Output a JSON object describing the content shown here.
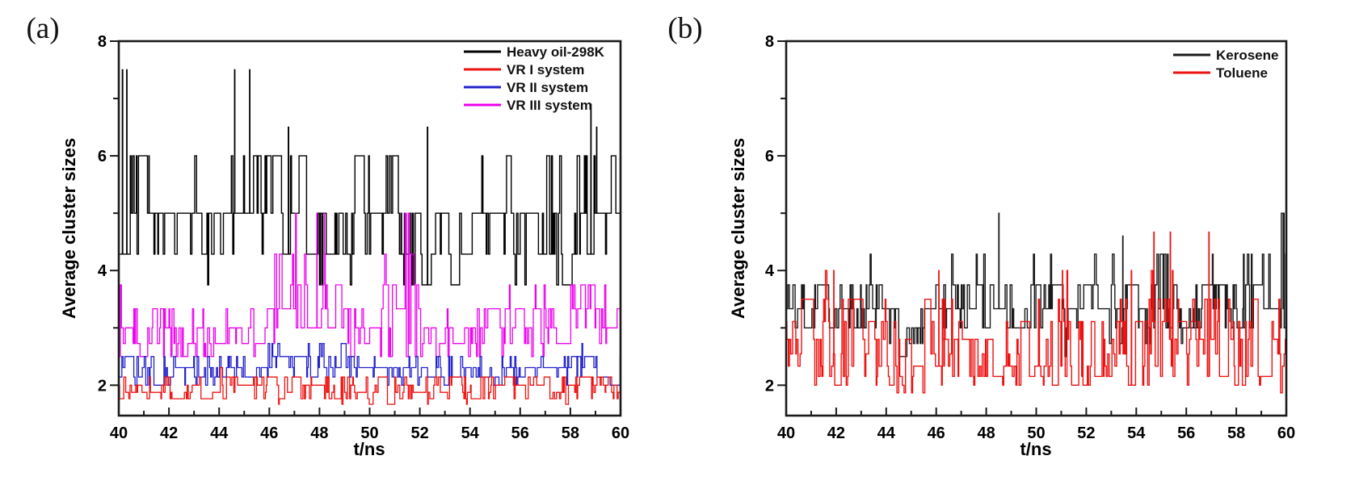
{
  "figure": {
    "background": "#ffffff",
    "frame_color": "#1a1a1a"
  },
  "chart_data": [
    {
      "type": "line",
      "panel_label": "(a)",
      "xlabel": "t/ns",
      "ylabel": "Average cluster sizes",
      "xlim": [
        40,
        60
      ],
      "ylim": [
        1.47,
        8
      ],
      "x_major_ticks": [
        40,
        42,
        44,
        46,
        48,
        50,
        52,
        54,
        56,
        58,
        60
      ],
      "x_minor_ticks": [
        41,
        43,
        45,
        47,
        49,
        51,
        53,
        55,
        57,
        59
      ],
      "y_major_ticks": [
        2,
        4,
        6,
        8
      ],
      "y_minor_ticks": [
        3,
        5,
        7
      ],
      "grid": false,
      "legend_position": "top-right",
      "series": [
        {
          "name": "Heavy oil-298K",
          "color": "#000000",
          "stroke_width": 1.4,
          "z": 0,
          "seed": 7,
          "samples": 1400,
          "quant_base": 30,
          "x_start": 40,
          "x_step": 0.5,
          "envelope_lo": [
            4.3,
            4.3,
            4.3,
            4.3,
            4.3,
            4.3,
            4.3,
            3.75,
            3.75,
            4.3,
            4.3,
            4.3,
            4.3,
            4.3,
            4.3,
            4.3,
            3.75,
            3.75,
            3.75,
            3.75,
            4.3,
            4.3,
            4.3,
            3.75,
            3.75,
            3.75,
            3.75,
            3.75,
            3.75,
            3.75,
            3.75,
            3.75,
            3.75,
            3.75,
            3.75,
            3.75,
            3.75,
            4.3,
            4.3,
            4.3,
            4.3
          ],
          "envelope_hi": [
            6.5,
            6,
            6,
            5,
            5,
            5,
            6,
            5,
            5,
            6,
            6,
            6,
            6,
            6,
            6,
            6,
            5,
            5,
            5,
            6,
            6,
            6,
            6,
            5,
            5,
            5,
            5,
            5,
            5,
            6,
            5,
            6,
            5,
            5,
            6,
            6,
            6,
            6,
            6,
            6,
            6
          ],
          "spikes": [
            [
              40.15,
              7.5
            ],
            [
              40.32,
              7.5
            ],
            [
              44.62,
              7.5
            ],
            [
              45.22,
              7.5
            ],
            [
              46.75,
              6.5
            ],
            [
              52.3,
              6.5
            ],
            [
              58.82,
              6.9
            ],
            [
              59.05,
              6.5
            ]
          ]
        },
        {
          "name": "VR I system",
          "color": "#ee1111",
          "stroke_width": 1.3,
          "z": 3,
          "seed": 13,
          "samples": 1300,
          "quant_base": 30,
          "x_start": 40,
          "x_step": 0.5,
          "envelope_lo": [
            1.7,
            1.65,
            1.7,
            1.7,
            1.65,
            1.7,
            1.7,
            1.7,
            1.65,
            1.7,
            1.7,
            1.7,
            1.65,
            1.7,
            1.7,
            1.7,
            1.65,
            1.7,
            1.7,
            1.7,
            1.65,
            1.7,
            1.7,
            1.7,
            1.65,
            1.7,
            1.7,
            1.7,
            1.65,
            1.7,
            1.7,
            1.7,
            1.65,
            1.7,
            1.7,
            1.7,
            1.65,
            1.7,
            1.7,
            1.7,
            1.7
          ],
          "envelope_hi": [
            2.2,
            2.2,
            2.2,
            2.2,
            2.2,
            2.2,
            2.2,
            2.2,
            2.3,
            2.2,
            2.2,
            2.2,
            2.2,
            2.2,
            2.2,
            2.2,
            2.2,
            2.2,
            2.2,
            2.2,
            2.3,
            2.2,
            2.2,
            2.2,
            2.2,
            2.2,
            2.2,
            2.2,
            2.2,
            2.2,
            2.2,
            2.2,
            2.2,
            2.3,
            2.2,
            2.2,
            2.2,
            2.2,
            2.2,
            2.2,
            2.2
          ],
          "spikes": []
        },
        {
          "name": "VR II system",
          "color": "#2222cc",
          "stroke_width": 1.3,
          "z": 2,
          "seed": 21,
          "samples": 1300,
          "quant_base": 30,
          "x_start": 40,
          "x_step": 0.5,
          "envelope_lo": [
            2.0,
            2.0,
            2.0,
            2.0,
            2.0,
            2.0,
            2.0,
            2.0,
            2.0,
            2.0,
            2.0,
            2.05,
            2.1,
            2.1,
            2.1,
            2.1,
            2.14,
            2.1,
            2.1,
            2.05,
            2.0,
            2.0,
            2.0,
            2.0,
            2.0,
            2.0,
            2.0,
            2.0,
            2.0,
            2.0,
            2.0,
            2.0,
            2.0,
            2.0,
            2.0,
            2.0,
            2.0,
            2.05,
            2.05,
            2.0,
            2.0
          ],
          "envelope_hi": [
            2.5,
            2.5,
            2.5,
            2.5,
            2.5,
            2.5,
            2.5,
            2.5,
            2.5,
            2.5,
            2.5,
            2.6,
            2.73,
            2.73,
            2.73,
            2.8,
            2.9,
            2.8,
            2.73,
            2.6,
            2.5,
            2.5,
            2.5,
            2.5,
            2.5,
            2.5,
            2.5,
            2.5,
            2.5,
            2.5,
            2.5,
            2.5,
            2.5,
            2.5,
            2.5,
            2.6,
            2.6,
            2.73,
            2.73,
            2.6,
            2.5
          ],
          "spikes": []
        },
        {
          "name": "VR III system",
          "color": "#ee00ee",
          "stroke_width": 1.3,
          "z": 1,
          "seed": 35,
          "samples": 1300,
          "quant_base": 30,
          "x_start": 40,
          "x_step": 0.5,
          "envelope_lo": [
            2.5,
            2.5,
            2.5,
            2.5,
            2.5,
            2.4,
            2.5,
            2.5,
            2.5,
            2.5,
            2.5,
            2.6,
            2.73,
            2.73,
            2.73,
            2.73,
            2.73,
            2.73,
            2.6,
            2.5,
            2.5,
            2.5,
            2.5,
            2.5,
            2.4,
            2.4,
            2.5,
            2.5,
            2.5,
            2.5,
            2.5,
            2.5,
            2.5,
            2.5,
            2.5,
            2.5,
            2.5,
            2.6,
            2.5,
            2.5,
            2.4
          ],
          "envelope_hi": [
            3.75,
            3.33,
            3.33,
            3.33,
            3.33,
            3.0,
            3.33,
            3.33,
            3.75,
            3.33,
            3.33,
            3.75,
            4.3,
            4.3,
            5,
            4.3,
            5,
            4.3,
            3.75,
            3.33,
            3.75,
            4.3,
            4.3,
            5,
            3.33,
            3.0,
            3.33,
            3.33,
            3.33,
            3.75,
            3.33,
            3.75,
            3.33,
            3.75,
            3.75,
            3.33,
            3.75,
            4.3,
            3.75,
            3.75,
            3.33
          ],
          "spikes": [
            [
              47.9,
              5
            ],
            [
              51.45,
              5
            ]
          ]
        }
      ]
    },
    {
      "type": "line",
      "panel_label": "(b)",
      "xlabel": "t/ns",
      "ylabel": "Average cluster sizes",
      "xlim": [
        40,
        60
      ],
      "ylim": [
        1.47,
        8
      ],
      "x_major_ticks": [
        40,
        42,
        44,
        46,
        48,
        50,
        52,
        54,
        56,
        58,
        60
      ],
      "x_minor_ticks": [
        41,
        43,
        45,
        47,
        49,
        51,
        53,
        55,
        57,
        59
      ],
      "y_major_ticks": [
        2,
        4,
        6,
        8
      ],
      "y_minor_ticks": [
        3,
        5,
        7
      ],
      "grid": false,
      "legend_position": "top-right",
      "series": [
        {
          "name": "Kerosene",
          "color": "#1a1a1a",
          "stroke_width": 1.4,
          "z": 0,
          "seed": 42,
          "samples": 1400,
          "quant_base": 30,
          "x_start": 40,
          "x_step": 0.5,
          "envelope_lo": [
            3.0,
            3.0,
            3.0,
            3.0,
            3.0,
            3.0,
            3.0,
            3.0,
            2.73,
            2.5,
            2.5,
            2.73,
            3.0,
            3.0,
            2.73,
            3.0,
            3.0,
            3.0,
            2.73,
            2.73,
            3.0,
            3.0,
            2.4,
            2.73,
            2.73,
            3.0,
            2.73,
            2.6,
            2.73,
            2.73,
            3.0,
            2.73,
            2.73,
            2.73,
            3.0,
            3.0,
            2.73,
            3.0,
            3.0,
            3.0,
            3.0
          ],
          "envelope_hi": [
            3.75,
            4.3,
            3.75,
            3.75,
            3.75,
            3.75,
            3.75,
            4.3,
            3.75,
            3.33,
            3.33,
            3.75,
            4.3,
            4.3,
            3.75,
            4.3,
            4.3,
            4.3,
            3.75,
            3.75,
            4.3,
            4.3,
            3.75,
            3.75,
            3.75,
            4.3,
            4.3,
            4.3,
            3.75,
            3.75,
            4.3,
            3.75,
            3.75,
            3.75,
            4.3,
            4.3,
            3.75,
            4.3,
            4.3,
            4.3,
            5
          ],
          "spikes": [
            [
              48.5,
              5
            ],
            [
              53.45,
              4.6
            ],
            [
              59.9,
              5
            ]
          ]
        },
        {
          "name": "Toluene",
          "color": "#ee1111",
          "stroke_width": 1.4,
          "z": 1,
          "seed": 57,
          "samples": 1400,
          "quant_base": 28,
          "x_start": 40,
          "x_step": 0.5,
          "envelope_lo": [
            2.0,
            2.0,
            1.87,
            2.0,
            2.0,
            1.87,
            2.0,
            2.0,
            1.87,
            1.65,
            1.65,
            1.75,
            2.0,
            2.0,
            1.87,
            2.0,
            2.0,
            1.87,
            2.0,
            2.0,
            2.0,
            1.87,
            2.0,
            2.0,
            1.87,
            2.0,
            2.0,
            2.0,
            1.87,
            2.0,
            2.0,
            2.0,
            1.87,
            2.0,
            2.15,
            2.15,
            1.87,
            2.0,
            1.87,
            2.0,
            1.75
          ],
          "envelope_hi": [
            3.5,
            3.5,
            3.5,
            4.0,
            4.0,
            3.5,
            3.5,
            3.11,
            3.5,
            3.11,
            3.11,
            3.5,
            4.0,
            3.5,
            3.5,
            3.11,
            3.5,
            3.11,
            3.11,
            3.5,
            3.5,
            3.11,
            4.0,
            3.5,
            3.11,
            3.5,
            3.11,
            4.0,
            3.5,
            4.0,
            3.5,
            4.0,
            3.5,
            3.5,
            4.0,
            4.0,
            3.11,
            3.5,
            3.11,
            3.5,
            4.0
          ],
          "spikes": [
            [
              41.9,
              4.0
            ],
            [
              46.1,
              4.0
            ],
            [
              51.05,
              4.0
            ],
            [
              53.8,
              4.0
            ],
            [
              54.7,
              4.67
            ],
            [
              55.35,
              4.67
            ],
            [
              56.9,
              4.67
            ]
          ]
        }
      ]
    }
  ]
}
